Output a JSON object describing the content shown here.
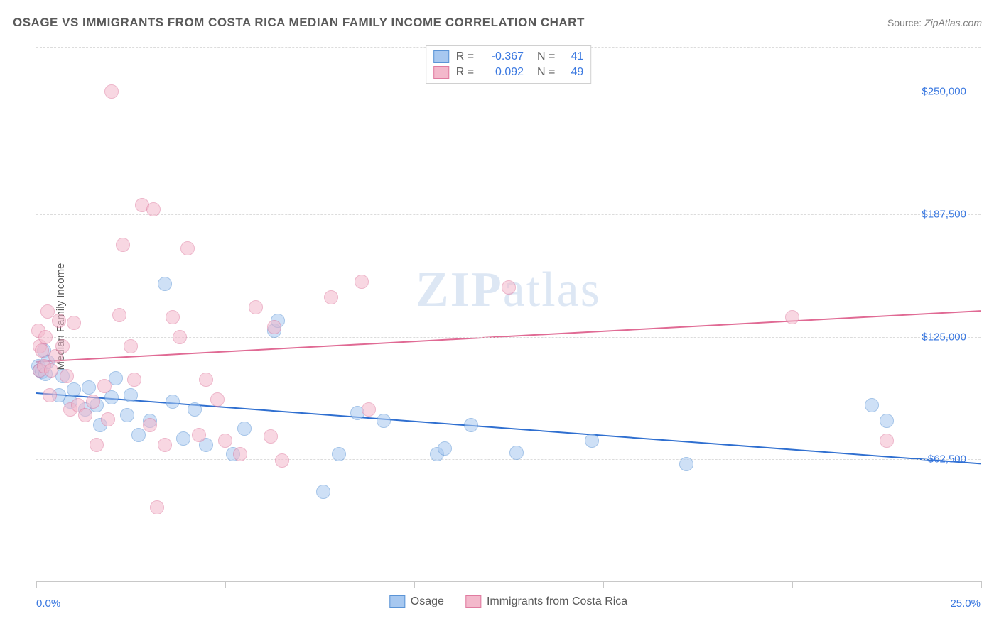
{
  "title": "OSAGE VS IMMIGRANTS FROM COSTA RICA MEDIAN FAMILY INCOME CORRELATION CHART",
  "source_label": "Source:",
  "source_value": "ZipAtlas.com",
  "ylabel": "Median Family Income",
  "watermark": "ZIPatlas",
  "chart": {
    "type": "scatter",
    "xlim": [
      0,
      25
    ],
    "ylim": [
      0,
      275000
    ],
    "x_axis_labels": {
      "min": "0.0%",
      "max": "25.0%"
    },
    "y_ticks": [
      {
        "v": 62500,
        "label": "$62,500"
      },
      {
        "v": 125000,
        "label": "$125,000"
      },
      {
        "v": 187500,
        "label": "$187,500"
      },
      {
        "v": 250000,
        "label": "$250,000"
      }
    ],
    "x_tick_positions": [
      0,
      2.5,
      5,
      7.5,
      10,
      12.5,
      15,
      17.5,
      20,
      22.5,
      25
    ],
    "grid_color": "#dcdcdc",
    "axis_color": "#c8c8c8",
    "background_color": "#ffffff",
    "point_radius": 10,
    "point_opacity": 0.55,
    "line_width": 2,
    "series": [
      {
        "name": "Osage",
        "color_fill": "#a7c8f0",
        "color_stroke": "#5b94d6",
        "line_color": "#2f6fd0",
        "R": "-0.367",
        "N": "41",
        "trend": {
          "x1": 0,
          "y1": 96000,
          "x2": 25,
          "y2": 60000
        },
        "points": [
          [
            0.05,
            110000
          ],
          [
            0.1,
            108000
          ],
          [
            0.15,
            107000
          ],
          [
            0.2,
            118000
          ],
          [
            0.25,
            106000
          ],
          [
            0.3,
            112000
          ],
          [
            0.6,
            95000
          ],
          [
            0.7,
            105000
          ],
          [
            0.9,
            92000
          ],
          [
            1.0,
            98000
          ],
          [
            1.3,
            88000
          ],
          [
            1.4,
            99000
          ],
          [
            1.6,
            90000
          ],
          [
            1.7,
            80000
          ],
          [
            2.0,
            94000
          ],
          [
            2.1,
            104000
          ],
          [
            2.4,
            85000
          ],
          [
            2.5,
            95000
          ],
          [
            2.7,
            75000
          ],
          [
            3.0,
            82000
          ],
          [
            3.4,
            152000
          ],
          [
            3.6,
            92000
          ],
          [
            3.9,
            73000
          ],
          [
            4.2,
            88000
          ],
          [
            4.5,
            70000
          ],
          [
            5.2,
            65000
          ],
          [
            5.5,
            78000
          ],
          [
            6.3,
            128000
          ],
          [
            6.4,
            133000
          ],
          [
            7.6,
            46000
          ],
          [
            8.0,
            65000
          ],
          [
            8.5,
            86000
          ],
          [
            9.2,
            82000
          ],
          [
            10.6,
            65000
          ],
          [
            10.8,
            68000
          ],
          [
            11.5,
            80000
          ],
          [
            12.7,
            66000
          ],
          [
            14.7,
            72000
          ],
          [
            17.2,
            60000
          ],
          [
            22.1,
            90000
          ],
          [
            22.5,
            82000
          ]
        ]
      },
      {
        "name": "Immigrants from Costa Rica",
        "color_fill": "#f3b8cb",
        "color_stroke": "#e07ba0",
        "line_color": "#e06a94",
        "R": "0.092",
        "N": "49",
        "trend": {
          "x1": 0,
          "y1": 112000,
          "x2": 25,
          "y2": 138000
        },
        "points": [
          [
            0.05,
            128000
          ],
          [
            0.1,
            120000
          ],
          [
            0.1,
            108000
          ],
          [
            0.15,
            118000
          ],
          [
            0.2,
            110000
          ],
          [
            0.25,
            125000
          ],
          [
            0.3,
            138000
          ],
          [
            0.4,
            108000
          ],
          [
            0.5,
            115000
          ],
          [
            0.35,
            95000
          ],
          [
            0.6,
            133000
          ],
          [
            0.7,
            120000
          ],
          [
            0.8,
            105000
          ],
          [
            0.9,
            88000
          ],
          [
            1.0,
            132000
          ],
          [
            1.1,
            90000
          ],
          [
            1.3,
            85000
          ],
          [
            1.5,
            92000
          ],
          [
            1.6,
            70000
          ],
          [
            1.8,
            100000
          ],
          [
            1.9,
            83000
          ],
          [
            2.0,
            250000
          ],
          [
            2.2,
            136000
          ],
          [
            2.3,
            172000
          ],
          [
            2.5,
            120000
          ],
          [
            2.6,
            103000
          ],
          [
            2.8,
            192000
          ],
          [
            3.0,
            80000
          ],
          [
            3.1,
            190000
          ],
          [
            3.2,
            38000
          ],
          [
            3.4,
            70000
          ],
          [
            3.6,
            135000
          ],
          [
            3.8,
            125000
          ],
          [
            4.0,
            170000
          ],
          [
            4.3,
            75000
          ],
          [
            4.5,
            103000
          ],
          [
            4.8,
            93000
          ],
          [
            5.0,
            72000
          ],
          [
            5.4,
            65000
          ],
          [
            5.8,
            140000
          ],
          [
            6.2,
            74000
          ],
          [
            6.3,
            130000
          ],
          [
            6.5,
            62000
          ],
          [
            7.8,
            145000
          ],
          [
            8.6,
            153000
          ],
          [
            8.8,
            88000
          ],
          [
            12.5,
            150000
          ],
          [
            20.0,
            135000
          ],
          [
            22.5,
            72000
          ]
        ]
      }
    ]
  },
  "legend_bottom": [
    {
      "label": "Osage",
      "fill": "#a7c8f0",
      "stroke": "#5b94d6"
    },
    {
      "label": "Immigrants from Costa Rica",
      "fill": "#f3b8cb",
      "stroke": "#e07ba0"
    }
  ]
}
